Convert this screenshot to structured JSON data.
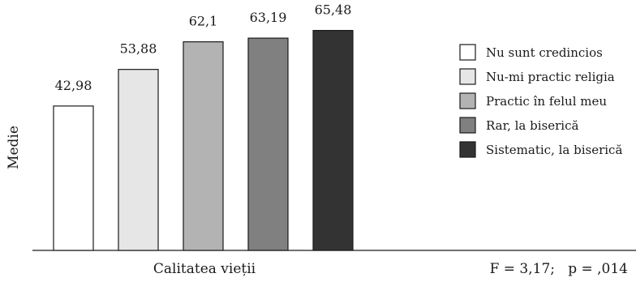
{
  "chart_data": {
    "type": "bar",
    "categories": [
      "Calitatea vieții"
    ],
    "series": [
      {
        "name": "Nu sunt credincios",
        "values": [
          42.98
        ],
        "label": "42,98",
        "color": "#ffffff"
      },
      {
        "name": "Nu-mi practic religia",
        "values": [
          53.88
        ],
        "label": "53,88",
        "color": "#e6e6e6"
      },
      {
        "name": "Practic în felul meu",
        "values": [
          62.1
        ],
        "label": "62,1",
        "color": "#b3b3b3"
      },
      {
        "name": "Rar, la biserică",
        "values": [
          63.19
        ],
        "label": "63,19",
        "color": "#808080"
      },
      {
        "name": "Sistematic, la biserică",
        "values": [
          65.48
        ],
        "label": "65,48",
        "color": "#333333"
      }
    ],
    "xlabel": "Calitatea vieții",
    "ylabel": "Medie",
    "ylim": [
      0,
      70
    ],
    "grid": false,
    "legend_position": "right",
    "annotation": "F = 3,17;   p = ,014"
  }
}
